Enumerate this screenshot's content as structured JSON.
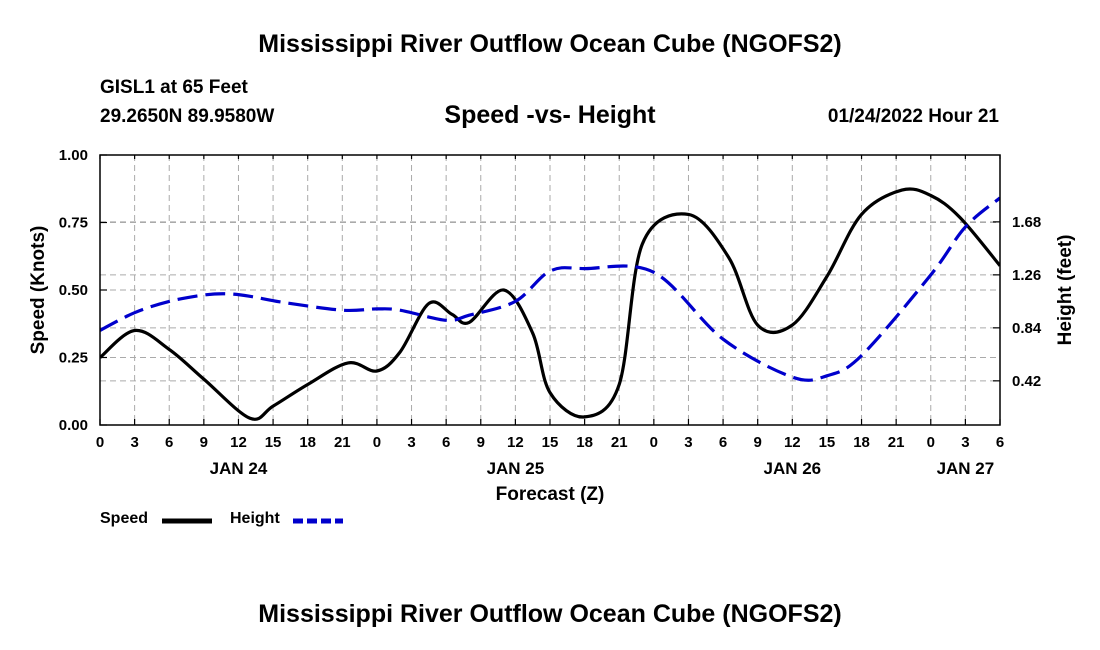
{
  "page": {
    "title_top": "Mississippi River Outflow Ocean Cube (NGOFS2)",
    "title_bottom": "Mississippi River Outflow Ocean Cube (NGOFS2)",
    "station": "GISL1 at 65 Feet",
    "coords": "29.2650N  89.9580W",
    "subtitle": "Speed -vs- Height",
    "datetime": "01/24/2022 Hour 21"
  },
  "legend": {
    "speed_label": "Speed",
    "height_label": "Height"
  },
  "colors": {
    "speed": "#000000",
    "height": "#0000cc",
    "grid": "#aaaaaa"
  },
  "chart_data": {
    "type": "line",
    "xlabel": "Forecast (Z)",
    "ylabel": "Speed (Knots)",
    "y2label": "Height (feet)",
    "xlim": [
      0,
      78
    ],
    "ylim": [
      0,
      1
    ],
    "y2lim": [
      0.07,
      2.21
    ],
    "x_tick_labels": [
      "0",
      "3",
      "6",
      "9",
      "12",
      "15",
      "18",
      "21",
      "0",
      "3",
      "6",
      "9",
      "12",
      "15",
      "18",
      "21",
      "0",
      "3",
      "6",
      "9",
      "12",
      "15",
      "18",
      "21",
      "0",
      "3",
      "6"
    ],
    "date_labels": [
      {
        "label": "JAN 24",
        "x": 12
      },
      {
        "label": "JAN 25",
        "x": 36
      },
      {
        "label": "JAN 26",
        "x": 60
      },
      {
        "label": "JAN 27",
        "x": 75
      }
    ],
    "y_ticks": [
      0,
      0.25,
      0.5,
      0.75,
      1
    ],
    "y_tick_labels": [
      "0.00",
      "0.25",
      "0.50",
      "0.75",
      "1.00"
    ],
    "y2_ticks": [
      0.42,
      0.84,
      1.26,
      1.68
    ],
    "y2_tick_labels": [
      "0.42",
      "0.84",
      "1.26",
      "1.68"
    ],
    "grid": true,
    "series": [
      {
        "name": "Speed",
        "axis": "left",
        "style": "solid",
        "x": [
          0,
          3,
          6,
          9,
          13,
          15,
          18,
          21.5,
          24,
          26,
          28.5,
          30.5,
          32,
          35,
          37.5,
          39,
          42,
          45,
          47,
          51,
          54.5,
          57,
          60,
          63,
          66,
          69.5,
          72,
          74.5,
          78
        ],
        "y": [
          0.25,
          0.35,
          0.28,
          0.17,
          0.025,
          0.07,
          0.15,
          0.23,
          0.2,
          0.27,
          0.45,
          0.41,
          0.38,
          0.5,
          0.34,
          0.12,
          0.03,
          0.15,
          0.67,
          0.78,
          0.62,
          0.37,
          0.37,
          0.55,
          0.78,
          0.87,
          0.85,
          0.77,
          0.59
        ]
      },
      {
        "name": "Height",
        "axis": "right",
        "style": "dashed",
        "x": [
          0,
          3,
          6,
          9,
          11,
          13,
          16,
          21,
          24,
          26,
          30,
          32,
          36,
          39,
          42,
          48,
          54,
          60,
          63,
          66,
          72,
          75,
          78
        ],
        "y": [
          0.82,
          0.96,
          1.05,
          1.1,
          1.11,
          1.09,
          1.04,
          0.98,
          0.99,
          0.98,
          0.9,
          0.94,
          1.05,
          1.29,
          1.31,
          1.28,
          0.75,
          0.45,
          0.46,
          0.62,
          1.26,
          1.64,
          1.87
        ]
      }
    ]
  }
}
